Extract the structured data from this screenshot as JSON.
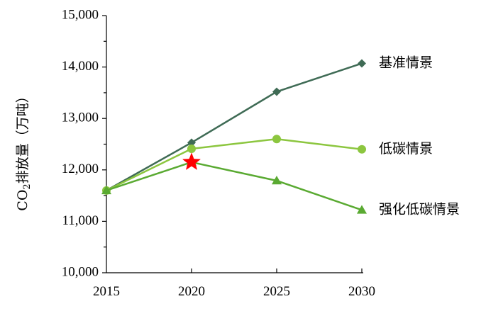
{
  "chart_data": {
    "type": "line",
    "x": [
      2015,
      2020,
      2025,
      2030
    ],
    "x_tick_labels": [
      "2015",
      "2020",
      "2025",
      "2030"
    ],
    "ylim": [
      10000,
      15000
    ],
    "y_ticks": [
      10000,
      11000,
      12000,
      13000,
      14000,
      15000
    ],
    "y_tick_labels": [
      "10,000",
      "11,000",
      "12,000",
      "13,000",
      "14,000",
      "15,000"
    ],
    "ylabel": {
      "prefix": "CO",
      "subscript": "2",
      "suffix": "排放量（万吨）"
    },
    "grid": false,
    "legend": "inline-right",
    "series": [
      {
        "name": "基准情景",
        "values": [
          11600,
          12530,
          13520,
          14070
        ],
        "color": "#3f6b55",
        "marker": "diamond"
      },
      {
        "name": "低碳情景",
        "values": [
          11600,
          12410,
          12600,
          12400
        ],
        "color": "#8cc63f",
        "marker": "circle"
      },
      {
        "name": "强化低碳情景",
        "values": [
          11600,
          12150,
          11790,
          11220
        ],
        "color": "#5aaa32",
        "marker": "triangle"
      }
    ],
    "annotations": [
      {
        "type": "star",
        "x": 2020,
        "y": 12150,
        "color": "#ff0000"
      }
    ]
  }
}
